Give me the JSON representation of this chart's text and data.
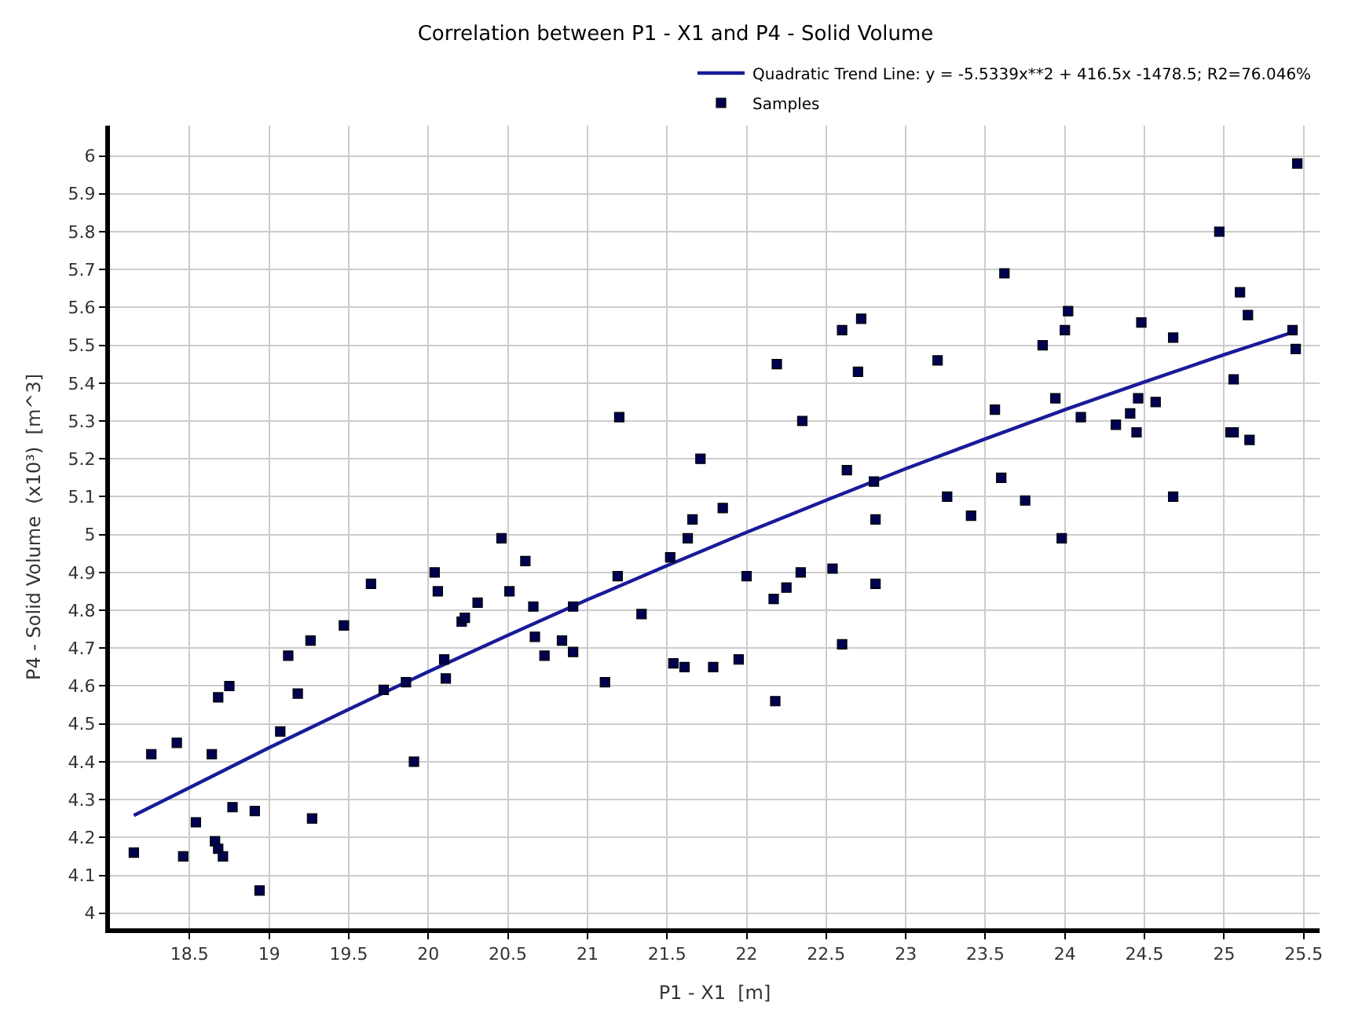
{
  "chart_data": {
    "type": "scatter",
    "title": "Correlation between P1 - X1 and P4 - Solid Volume",
    "xlabel": "P1 - X1  [m]",
    "ylabel": "P4 - Solid Volume  (x10³)  [m^3]",
    "xlim": [
      18.0,
      25.6
    ],
    "ylim": [
      3.96,
      6.08
    ],
    "xticks": [
      18.5,
      19,
      19.5,
      20,
      20.5,
      21,
      21.5,
      22,
      22.5,
      23,
      23.5,
      24,
      24.5,
      25,
      25.5
    ],
    "yticks": [
      4,
      4.1,
      4.2,
      4.3,
      4.4,
      4.5,
      4.6,
      4.7,
      4.8,
      4.9,
      5,
      5.1,
      5.2,
      5.3,
      5.4,
      5.5,
      5.6,
      5.7,
      5.8,
      5.9,
      6
    ],
    "grid": true,
    "legend": "top right",
    "series": [
      {
        "name": "Quadratic Trend Line: y = -5.5339x**2 + 416.5x -1478.5; R2=76.046%",
        "type": "line",
        "color": "#1a1a99",
        "marker": "none",
        "line_style": "solid",
        "x": [
          18.15,
          19,
          20,
          21,
          22,
          23,
          24,
          25,
          25.45
        ],
        "values": [
          4.258,
          4.437,
          4.638,
          4.828,
          5.006,
          5.174,
          5.33,
          5.475,
          5.537
        ]
      },
      {
        "name": "Samples",
        "type": "scatter",
        "color": "#000050",
        "marker": "square",
        "x": [
          18.15,
          18.26,
          18.42,
          18.46,
          18.54,
          18.64,
          18.66,
          18.68,
          18.71,
          18.68,
          18.75,
          18.77,
          18.91,
          18.94,
          19.07,
          19.12,
          19.18,
          19.26,
          19.27,
          19.47,
          19.64,
          19.72,
          19.86,
          19.91,
          20.04,
          20.06,
          20.1,
          20.11,
          20.21,
          20.23,
          20.31,
          20.46,
          20.51,
          20.61,
          20.66,
          20.67,
          20.73,
          20.84,
          20.91,
          20.91,
          21.11,
          21.19,
          21.34,
          21.52,
          21.54,
          21.61,
          21.63,
          21.66,
          21.2,
          21.71,
          21.79,
          21.95,
          22.18,
          22.0,
          22.17,
          22.25,
          22.34,
          22.54,
          22.6,
          22.81,
          22.81,
          21.85,
          23.41,
          23.75,
          23.98,
          24.68,
          23.26,
          22.19,
          22.35,
          22.6,
          22.7,
          22.72,
          22.63,
          22.8,
          23.2,
          23.56,
          23.6,
          23.62,
          23.86,
          23.94,
          24.0,
          24.02,
          24.1,
          24.32,
          24.41,
          24.45,
          24.46,
          24.48,
          24.57,
          24.68,
          24.97,
          25.04,
          25.06,
          25.06,
          25.1,
          25.15,
          25.16,
          25.46,
          25.43,
          25.45
        ],
        "values": [
          4.16,
          4.42,
          4.45,
          4.15,
          4.24,
          4.42,
          4.19,
          4.17,
          4.15,
          4.57,
          4.6,
          4.28,
          4.27,
          4.06,
          4.48,
          4.68,
          4.58,
          4.72,
          4.25,
          4.76,
          4.87,
          4.59,
          4.61,
          4.4,
          4.9,
          4.85,
          4.67,
          4.62,
          4.77,
          4.78,
          4.82,
          4.99,
          4.85,
          4.93,
          4.81,
          4.73,
          4.68,
          4.72,
          4.81,
          4.69,
          4.61,
          4.89,
          4.79,
          4.94,
          4.66,
          4.65,
          4.99,
          5.04,
          5.31,
          5.2,
          4.65,
          4.67,
          4.56,
          4.89,
          4.83,
          4.86,
          4.9,
          4.91,
          4.71,
          4.87,
          5.04,
          5.07,
          5.05,
          5.09,
          4.99,
          5.1,
          5.1,
          5.45,
          5.3,
          5.54,
          5.43,
          5.57,
          5.17,
          5.14,
          5.46,
          5.33,
          5.15,
          5.69,
          5.5,
          5.36,
          5.54,
          5.59,
          5.31,
          5.29,
          5.32,
          5.27,
          5.36,
          5.56,
          5.35,
          5.52,
          5.8,
          5.27,
          5.27,
          5.41,
          5.64,
          5.58,
          5.25,
          5.98,
          5.54,
          5.49
        ]
      }
    ]
  }
}
